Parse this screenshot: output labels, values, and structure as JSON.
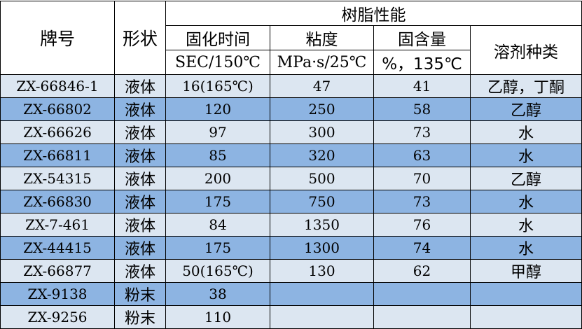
{
  "header": {
    "brand": "牌号",
    "form": "形状",
    "resin_props": "树脂性能",
    "cure_time": "固化时间",
    "viscosity": "粘度",
    "solid_content": "固含量",
    "solvent": "溶剂种类",
    "cure_time_unit": "SEC/150℃",
    "viscosity_unit": "MPa·s/25℃",
    "solid_content_unit": "%，135℃"
  },
  "rows": [
    {
      "brand": "ZX-66846-1",
      "form": "液体",
      "cure_time": "16(165℃)",
      "viscosity": "47",
      "solid": "41",
      "solvent": "乙醇，丁酮",
      "shade": "light"
    },
    {
      "brand": "ZX-66802",
      "form": "液体",
      "cure_time": "120",
      "viscosity": "250",
      "solid": "58",
      "solvent": "乙醇",
      "shade": "dark"
    },
    {
      "brand": "ZX-66626",
      "form": "液体",
      "cure_time": "97",
      "viscosity": "300",
      "solid": "73",
      "solvent": "水",
      "shade": "light"
    },
    {
      "brand": "ZX-66811",
      "form": "液体",
      "cure_time": "85",
      "viscosity": "320",
      "solid": "63",
      "solvent": "水",
      "shade": "dark"
    },
    {
      "brand": "ZX-54315",
      "form": "液体",
      "cure_time": "200",
      "viscosity": "500",
      "solid": "70",
      "solvent": "乙醇",
      "shade": "light"
    },
    {
      "brand": "ZX-66830",
      "form": "液体",
      "cure_time": "175",
      "viscosity": "750",
      "solid": "73",
      "solvent": "水",
      "shade": "dark"
    },
    {
      "brand": "ZX-7-461",
      "form": "液体",
      "cure_time": "84",
      "viscosity": "1350",
      "solid": "76",
      "solvent": "水",
      "shade": "light"
    },
    {
      "brand": "ZX-44415",
      "form": "液体",
      "cure_time": "175",
      "viscosity": "1300",
      "solid": "74",
      "solvent": "水",
      "shade": "dark"
    },
    {
      "brand": "ZX-66877",
      "form": "液体",
      "cure_time": "50(165℃)",
      "viscosity": "130",
      "solid": "62",
      "solvent": "甲醇",
      "shade": "light"
    },
    {
      "brand": "ZX-9138",
      "form": "粉末",
      "cure_time": "38",
      "viscosity": "",
      "solid": "",
      "solvent": "",
      "shade": "dark"
    },
    {
      "brand": "ZX-9256",
      "form": "粉末",
      "cure_time": "110",
      "viscosity": "",
      "solid": "",
      "solvent": "",
      "shade": "light"
    }
  ],
  "colors": {
    "row_light": "#dce6f1",
    "row_dark": "#8db4e2",
    "border": "#000000"
  }
}
